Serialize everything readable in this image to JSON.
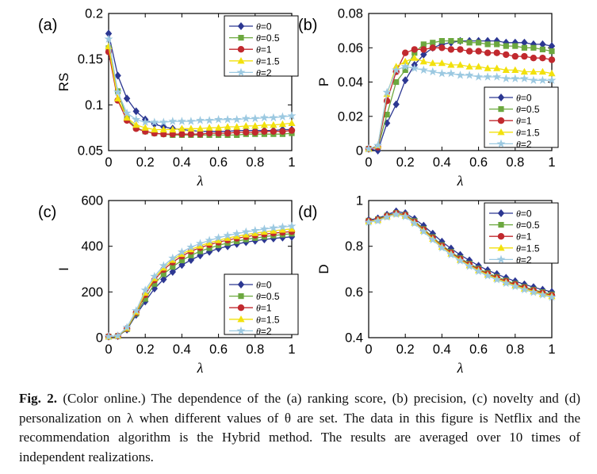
{
  "figure": {
    "caption_label": "Fig. 2.",
    "caption_text": " (Color online.) The dependence of the (a) ranking score, (b) precision, (c) novelty and (d) personalization on λ when different values of θ are set. The data in this figure is Netflix and the recommendation algorithm is the Hybrid method. The results are averaged over 10 times of independent realizations."
  },
  "chart_data": [
    {
      "id": "a",
      "panel_label": "(a)",
      "type": "line",
      "xlabel": "λ",
      "ylabel": "RS",
      "xlim": [
        0,
        1
      ],
      "ylim": [
        0.05,
        0.2
      ],
      "xticks": [
        0,
        0.2,
        0.4,
        0.6,
        0.8,
        1
      ],
      "xtick_labels": [
        "0",
        "0.2",
        "0.4",
        "0.6",
        "0.8",
        "1"
      ],
      "yticks": [
        0.05,
        0.1,
        0.15,
        0.2
      ],
      "ytick_labels": [
        "0.05",
        "0.1",
        "0.15",
        "0.2"
      ],
      "grid": false,
      "legend_pos": "top-right",
      "x": [
        0,
        0.05,
        0.1,
        0.15,
        0.2,
        0.25,
        0.3,
        0.35,
        0.4,
        0.45,
        0.5,
        0.55,
        0.6,
        0.65,
        0.7,
        0.75,
        0.8,
        0.85,
        0.9,
        0.95,
        1
      ],
      "series": [
        {
          "name": "θ=0",
          "marker": "diamond",
          "color": "#2C3792",
          "values": [
            0.178,
            0.132,
            0.107,
            0.093,
            0.084,
            0.079,
            0.076,
            0.074,
            0.073,
            0.072,
            0.071,
            0.071,
            0.071,
            0.071,
            0.072,
            0.072,
            0.072,
            0.072,
            0.072,
            0.073,
            0.073
          ]
        },
        {
          "name": "θ=0.5",
          "marker": "square",
          "color": "#6CA83F",
          "values": [
            0.162,
            0.115,
            0.085,
            0.075,
            0.071,
            0.069,
            0.068,
            0.067,
            0.067,
            0.067,
            0.067,
            0.067,
            0.067,
            0.067,
            0.067,
            0.068,
            0.068,
            0.068,
            0.068,
            0.068,
            0.069
          ]
        },
        {
          "name": "θ=1",
          "marker": "circle",
          "color": "#C1292E",
          "values": [
            0.158,
            0.105,
            0.083,
            0.074,
            0.071,
            0.069,
            0.068,
            0.068,
            0.068,
            0.068,
            0.068,
            0.069,
            0.069,
            0.069,
            0.07,
            0.07,
            0.07,
            0.071,
            0.071,
            0.071,
            0.072
          ]
        },
        {
          "name": "θ=1.5",
          "marker": "triangle",
          "color": "#F2E10D",
          "values": [
            0.164,
            0.107,
            0.086,
            0.078,
            0.075,
            0.073,
            0.073,
            0.073,
            0.074,
            0.074,
            0.074,
            0.075,
            0.075,
            0.076,
            0.076,
            0.077,
            0.077,
            0.078,
            0.078,
            0.079,
            0.08
          ]
        },
        {
          "name": "θ=2",
          "marker": "star",
          "color": "#9CC9E1",
          "values": [
            0.172,
            0.114,
            0.091,
            0.084,
            0.081,
            0.081,
            0.081,
            0.082,
            0.082,
            0.082,
            0.083,
            0.083,
            0.084,
            0.084,
            0.084,
            0.085,
            0.085,
            0.086,
            0.086,
            0.087,
            0.088
          ]
        }
      ]
    },
    {
      "id": "b",
      "panel_label": "(b)",
      "type": "line",
      "xlabel": "λ",
      "ylabel": "P",
      "xlim": [
        0,
        1
      ],
      "ylim": [
        0,
        0.08
      ],
      "xticks": [
        0,
        0.2,
        0.4,
        0.6,
        0.8,
        1
      ],
      "xtick_labels": [
        "0",
        "0.2",
        "0.4",
        "0.6",
        "0.8",
        "1"
      ],
      "yticks": [
        0,
        0.02,
        0.04,
        0.06,
        0.08
      ],
      "ytick_labels": [
        "0",
        "0.02",
        "0.04",
        "0.06",
        "0.08"
      ],
      "grid": false,
      "legend_pos": "bottom-right",
      "x": [
        0,
        0.05,
        0.1,
        0.15,
        0.2,
        0.25,
        0.3,
        0.35,
        0.4,
        0.45,
        0.5,
        0.55,
        0.6,
        0.65,
        0.7,
        0.75,
        0.8,
        0.85,
        0.9,
        0.95,
        1
      ],
      "series": [
        {
          "name": "θ=0",
          "marker": "diamond",
          "color": "#2C3792",
          "values": [
            0.001,
            0.0,
            0.016,
            0.027,
            0.041,
            0.05,
            0.056,
            0.06,
            0.062,
            0.063,
            0.064,
            0.064,
            0.064,
            0.064,
            0.064,
            0.063,
            0.063,
            0.063,
            0.062,
            0.062,
            0.061
          ]
        },
        {
          "name": "θ=0.5",
          "marker": "square",
          "color": "#6CA83F",
          "values": [
            0.001,
            0.002,
            0.021,
            0.04,
            0.047,
            0.057,
            0.062,
            0.063,
            0.064,
            0.064,
            0.064,
            0.063,
            0.063,
            0.062,
            0.062,
            0.061,
            0.061,
            0.06,
            0.06,
            0.059,
            0.058
          ]
        },
        {
          "name": "θ=1",
          "marker": "circle",
          "color": "#C1292E",
          "values": [
            0.001,
            0.002,
            0.029,
            0.046,
            0.057,
            0.059,
            0.059,
            0.06,
            0.06,
            0.059,
            0.059,
            0.058,
            0.058,
            0.057,
            0.057,
            0.056,
            0.055,
            0.055,
            0.054,
            0.054,
            0.053
          ]
        },
        {
          "name": "θ=1.5",
          "marker": "triangle",
          "color": "#F2E10D",
          "values": [
            0.001,
            0.003,
            0.033,
            0.049,
            0.052,
            0.054,
            0.052,
            0.051,
            0.051,
            0.05,
            0.05,
            0.049,
            0.049,
            0.048,
            0.048,
            0.047,
            0.047,
            0.046,
            0.046,
            0.046,
            0.045
          ]
        },
        {
          "name": "θ=2",
          "marker": "star",
          "color": "#9CC9E1",
          "values": [
            0.001,
            0.003,
            0.034,
            0.047,
            0.049,
            0.048,
            0.047,
            0.046,
            0.045,
            0.045,
            0.044,
            0.044,
            0.043,
            0.043,
            0.043,
            0.042,
            0.042,
            0.042,
            0.041,
            0.041,
            0.041
          ]
        }
      ]
    },
    {
      "id": "c",
      "panel_label": "(c)",
      "type": "line",
      "xlabel": "λ",
      "ylabel": "I",
      "xlim": [
        0,
        1
      ],
      "ylim": [
        0,
        600
      ],
      "xticks": [
        0,
        0.2,
        0.4,
        0.6,
        0.8,
        1
      ],
      "xtick_labels": [
        "0",
        "0.2",
        "0.4",
        "0.6",
        "0.8",
        "1"
      ],
      "yticks": [
        0,
        200,
        400,
        600
      ],
      "ytick_labels": [
        "0",
        "200",
        "400",
        "600"
      ],
      "grid": false,
      "legend_pos": "bottom-right",
      "x": [
        0,
        0.05,
        0.1,
        0.15,
        0.2,
        0.25,
        0.3,
        0.35,
        0.4,
        0.45,
        0.5,
        0.55,
        0.6,
        0.65,
        0.7,
        0.75,
        0.8,
        0.85,
        0.9,
        0.95,
        1
      ],
      "series": [
        {
          "name": "θ=0",
          "marker": "diamond",
          "color": "#2C3792",
          "values": [
            5,
            7,
            35,
            100,
            158,
            215,
            255,
            288,
            318,
            340,
            360,
            376,
            390,
            400,
            410,
            418,
            424,
            430,
            434,
            438,
            441
          ]
        },
        {
          "name": "θ=0.5",
          "marker": "square",
          "color": "#6CA83F",
          "values": [
            5,
            7,
            37,
            105,
            170,
            235,
            278,
            310,
            338,
            360,
            378,
            392,
            404,
            414,
            422,
            430,
            436,
            442,
            447,
            451,
            455
          ]
        },
        {
          "name": "θ=1",
          "marker": "circle",
          "color": "#C1292E",
          "values": [
            5,
            7,
            40,
            110,
            188,
            252,
            298,
            330,
            357,
            378,
            394,
            407,
            418,
            427,
            435,
            442,
            448,
            453,
            457,
            461,
            464
          ]
        },
        {
          "name": "θ=1.5",
          "marker": "triangle",
          "color": "#F2E10D",
          "values": [
            5,
            8,
            42,
            113,
            196,
            260,
            306,
            340,
            366,
            386,
            402,
            415,
            426,
            436,
            444,
            451,
            457,
            463,
            468,
            472,
            476
          ]
        },
        {
          "name": "θ=2",
          "marker": "star",
          "color": "#9CC9E1",
          "values": [
            5,
            8,
            45,
            118,
            208,
            268,
            315,
            348,
            375,
            396,
            412,
            426,
            437,
            447,
            455,
            463,
            469,
            475,
            480,
            484,
            488
          ]
        }
      ]
    },
    {
      "id": "d",
      "panel_label": "(d)",
      "type": "line",
      "xlabel": "λ",
      "ylabel": "D",
      "xlim": [
        0,
        1
      ],
      "ylim": [
        0.4,
        1
      ],
      "xticks": [
        0,
        0.2,
        0.4,
        0.6,
        0.8,
        1
      ],
      "xtick_labels": [
        "0",
        "0.2",
        "0.4",
        "0.6",
        "0.8",
        "1"
      ],
      "yticks": [
        0.4,
        0.6,
        0.8,
        1
      ],
      "ytick_labels": [
        "0.4",
        "0.6",
        "0.8",
        "1"
      ],
      "grid": false,
      "legend_pos": "top-right",
      "x": [
        0,
        0.05,
        0.1,
        0.15,
        0.2,
        0.25,
        0.3,
        0.35,
        0.4,
        0.45,
        0.5,
        0.55,
        0.6,
        0.65,
        0.7,
        0.75,
        0.8,
        0.85,
        0.9,
        0.95,
        1
      ],
      "series": [
        {
          "name": "θ=0",
          "marker": "diamond",
          "color": "#2C3792",
          "values": [
            0.915,
            0.922,
            0.938,
            0.953,
            0.945,
            0.92,
            0.89,
            0.855,
            0.82,
            0.79,
            0.762,
            0.738,
            0.715,
            0.695,
            0.678,
            0.662,
            0.647,
            0.633,
            0.621,
            0.61,
            0.6
          ]
        },
        {
          "name": "θ=0.5",
          "marker": "square",
          "color": "#6CA83F",
          "values": [
            0.912,
            0.918,
            0.934,
            0.946,
            0.938,
            0.91,
            0.876,
            0.84,
            0.805,
            0.775,
            0.748,
            0.724,
            0.702,
            0.683,
            0.666,
            0.65,
            0.636,
            0.622,
            0.61,
            0.599,
            0.589
          ]
        },
        {
          "name": "θ=1",
          "marker": "circle",
          "color": "#C1292E",
          "values": [
            0.91,
            0.916,
            0.932,
            0.944,
            0.936,
            0.906,
            0.872,
            0.836,
            0.801,
            0.771,
            0.744,
            0.72,
            0.698,
            0.679,
            0.662,
            0.646,
            0.632,
            0.618,
            0.606,
            0.595,
            0.585
          ]
        },
        {
          "name": "θ=1.5",
          "marker": "triangle",
          "color": "#F2E10D",
          "values": [
            0.908,
            0.914,
            0.93,
            0.942,
            0.933,
            0.903,
            0.868,
            0.832,
            0.797,
            0.767,
            0.74,
            0.716,
            0.694,
            0.675,
            0.658,
            0.642,
            0.628,
            0.614,
            0.602,
            0.591,
            0.581
          ]
        },
        {
          "name": "θ=2",
          "marker": "star",
          "color": "#9CC9E1",
          "values": [
            0.905,
            0.911,
            0.928,
            0.94,
            0.93,
            0.9,
            0.864,
            0.828,
            0.793,
            0.763,
            0.736,
            0.712,
            0.69,
            0.671,
            0.654,
            0.638,
            0.624,
            0.61,
            0.598,
            0.587,
            0.577
          ]
        }
      ]
    }
  ]
}
